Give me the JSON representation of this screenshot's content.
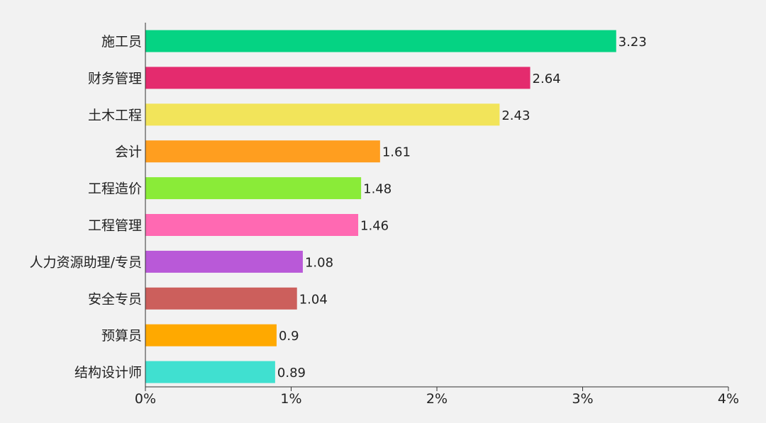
{
  "chart_data": {
    "type": "bar",
    "orientation": "horizontal",
    "title": "",
    "xlabel": "",
    "ylabel": "",
    "xlim": [
      0,
      4
    ],
    "x_tick_values": [
      0,
      1,
      2,
      3,
      4
    ],
    "x_tick_labels": [
      "0%",
      "1%",
      "2%",
      "3%",
      "4%"
    ],
    "grid": false,
    "legend": "none",
    "categories": [
      "施工员",
      "财务管理",
      "土木工程",
      "会计",
      "工程造价",
      "工程管理",
      "人力资源助理/专员",
      "安全专员",
      "预算员",
      "结构设计师"
    ],
    "values": [
      3.23,
      2.64,
      2.43,
      1.61,
      1.48,
      1.46,
      1.08,
      1.04,
      0.9,
      0.89
    ],
    "value_labels": [
      "3.23",
      "2.64",
      "2.43",
      "1.61",
      "1.48",
      "1.46",
      "1.08",
      "1.04",
      "0.9",
      "0.89"
    ],
    "colors": [
      "#05d383",
      "#e42b6e",
      "#f2e45a",
      "#ff9e1f",
      "#8aeb38",
      "#ff69b2",
      "#b959d8",
      "#cc5f5c",
      "#ffa900",
      "#40e0d0"
    ]
  }
}
